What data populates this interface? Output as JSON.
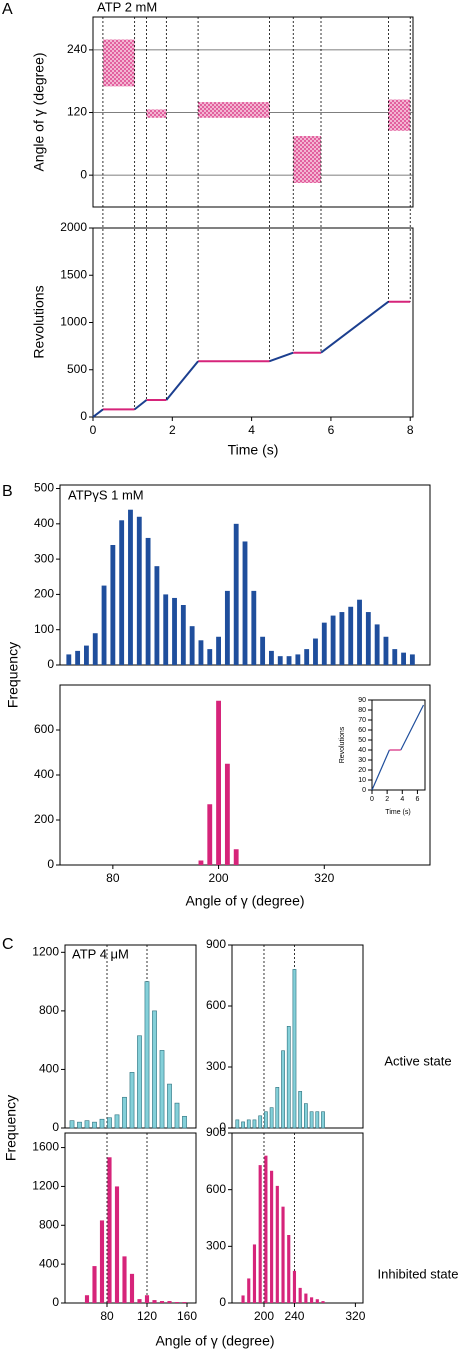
{
  "chart_data": [
    {
      "type": "scatter",
      "panel_label": "A",
      "annotation": "ATP 2 mM",
      "ylabel": "Angle of γ (degree)",
      "xlim": [
        0,
        8.07
      ],
      "ylim": [
        -61,
        303
      ],
      "yticks": [
        0,
        120,
        240
      ],
      "grid": true,
      "color": "#d6247a",
      "clusters": [
        {
          "t0": 0.25,
          "t1": 1.05,
          "angle": 215,
          "spread": 45
        },
        {
          "t0": 1.35,
          "t1": 1.85,
          "angle": 118,
          "spread": 8
        },
        {
          "t0": 2.65,
          "t1": 4.45,
          "angle": 125,
          "spread": 15
        },
        {
          "t0": 5.05,
          "t1": 5.75,
          "angle": 30,
          "spread": 45
        },
        {
          "t0": 7.45,
          "t1": 8.0,
          "angle": 115,
          "spread": 30
        }
      ]
    },
    {
      "type": "line",
      "ylabel": "Revolutions",
      "xlabel": "Time (s)",
      "xlim": [
        0,
        8.07
      ],
      "ylim": [
        0,
        2000
      ],
      "xticks": [
        0,
        2,
        4,
        6,
        8
      ],
      "yticks": [
        0,
        500,
        1000,
        1500,
        2000
      ],
      "series": [
        {
          "color": "#d6247a",
          "x": [
            0.25,
            1.05,
            null,
            1.35,
            1.85,
            null,
            2.65,
            4.45,
            null,
            5.05,
            5.75,
            null,
            7.45,
            8.0
          ],
          "values": [
            80,
            80,
            null,
            180,
            180,
            null,
            590,
            590,
            null,
            680,
            680,
            null,
            1220,
            1220
          ]
        },
        {
          "color": "#1c3f8f",
          "x": [
            0,
            0.25,
            null,
            1.05,
            1.35,
            null,
            1.85,
            2.65,
            null,
            4.45,
            5.05,
            null,
            5.75,
            7.45
          ],
          "values": [
            0,
            80,
            null,
            80,
            180,
            null,
            180,
            590,
            null,
            590,
            680,
            null,
            680,
            1220
          ]
        }
      ]
    },
    {
      "type": "bar",
      "panel_label": "B",
      "annotation": "ATPγS 1 mM",
      "color": "#1f4e9c",
      "xlim": [
        20,
        440
      ],
      "ylim": [
        0,
        510
      ],
      "yticks": [
        0,
        100,
        200,
        300,
        400,
        500
      ],
      "x": [
        30,
        40,
        50,
        60,
        70,
        80,
        90,
        100,
        110,
        120,
        130,
        140,
        150,
        160,
        170,
        180,
        190,
        200,
        210,
        220,
        230,
        240,
        250,
        260,
        270,
        280,
        290,
        300,
        310,
        320,
        330,
        340,
        350,
        360,
        370,
        380,
        390,
        400,
        410,
        420
      ],
      "values": [
        30,
        40,
        55,
        90,
        225,
        340,
        410,
        440,
        420,
        360,
        280,
        200,
        190,
        170,
        110,
        70,
        45,
        80,
        210,
        400,
        350,
        210,
        80,
        40,
        25,
        25,
        30,
        45,
        75,
        120,
        140,
        150,
        165,
        185,
        150,
        115,
        80,
        45,
        35,
        30
      ]
    },
    {
      "type": "bar",
      "ylabel": "Frequency",
      "xlabel": "Angle of γ (degree)",
      "color": "#d6247a",
      "xlim": [
        20,
        440
      ],
      "ylim": [
        0,
        800
      ],
      "yticks": [
        0,
        200,
        400,
        600
      ],
      "xticks": [
        80,
        200,
        320
      ],
      "x": [
        180,
        190,
        200,
        210,
        220
      ],
      "values": [
        20,
        270,
        730,
        450,
        70
      ]
    },
    {
      "type": "line",
      "ylabel": "Revolutions",
      "xlabel": "Time (s)",
      "xlim": [
        0,
        7
      ],
      "ylim": [
        0,
        90
      ],
      "xticks": [
        0,
        2,
        4,
        6
      ],
      "yticks": [
        0,
        10,
        20,
        30,
        40,
        50,
        60,
        70,
        80,
        90
      ],
      "series": [
        {
          "color": "#1f4e9c",
          "x": [
            0,
            2.3,
            null,
            3.8,
            6.8
          ],
          "values": [
            0,
            40,
            null,
            40,
            85
          ]
        },
        {
          "color": "#d6247a",
          "x": [
            2.3,
            3.8
          ],
          "values": [
            40,
            40
          ]
        }
      ]
    },
    {
      "type": "bar",
      "panel_label": "C",
      "annotation": "ATP 4 μM",
      "ylabel": "Frequency",
      "color": "#84d0d9",
      "xlim": [
        38,
        169
      ],
      "ylim": [
        0,
        1250
      ],
      "yticks": [
        0,
        400,
        800,
        1200
      ],
      "guides": [
        80,
        120
      ],
      "x": [
        45,
        52.5,
        60,
        67.5,
        75,
        82.5,
        90,
        97.5,
        105,
        112.5,
        120,
        127.5,
        135,
        142.5,
        150,
        157.5
      ],
      "values": [
        50,
        40,
        50,
        40,
        60,
        70,
        90,
        210,
        380,
        630,
        1000,
        800,
        530,
        300,
        170,
        80
      ]
    },
    {
      "type": "bar",
      "row_label": "Active state",
      "color": "#84d0d9",
      "xlim": [
        158,
        330
      ],
      "ylim": [
        0,
        900
      ],
      "yticks": [
        0,
        300,
        600,
        900
      ],
      "guides": [
        200,
        240
      ],
      "x": [
        165,
        172.5,
        180,
        187.5,
        195,
        202.5,
        210,
        217.5,
        225,
        232.5,
        240,
        247.5,
        255,
        262.5,
        270,
        277.5
      ],
      "values": [
        40,
        30,
        40,
        40,
        60,
        80,
        100,
        200,
        380,
        500,
        780,
        180,
        120,
        80,
        80,
        80
      ]
    },
    {
      "type": "bar",
      "xlabel": "Angle of γ (degree)",
      "color": "#d6247a",
      "xlim": [
        38,
        169
      ],
      "ylim": [
        0,
        1750
      ],
      "yticks": [
        0,
        400,
        800,
        1200,
        1600
      ],
      "xticks": [
        80,
        120,
        160
      ],
      "guides": [
        80,
        120
      ],
      "x": [
        60,
        67.5,
        75,
        82.5,
        90,
        97.5,
        105,
        112.5,
        120,
        127.5,
        135,
        142.5,
        150,
        157.5
      ],
      "values": [
        80,
        380,
        850,
        1500,
        1200,
        480,
        300,
        40,
        80,
        30,
        20,
        20,
        10,
        10
      ]
    },
    {
      "type": "bar",
      "row_label": "Inhibited state",
      "color": "#d6247a",
      "xlim": [
        158,
        330
      ],
      "ylim": [
        0,
        900
      ],
      "yticks": [
        0,
        300,
        600,
        900
      ],
      "xticks": [
        200,
        240,
        320
      ],
      "guides": [
        200,
        240
      ],
      "x": [
        172.5,
        180,
        187.5,
        195,
        202.5,
        210,
        217.5,
        225,
        232.5,
        240,
        247.5,
        255,
        262.5,
        270,
        277.5
      ],
      "values": [
        40,
        130,
        310,
        730,
        780,
        700,
        620,
        510,
        360,
        170,
        80,
        50,
        30,
        20,
        10
      ]
    }
  ]
}
